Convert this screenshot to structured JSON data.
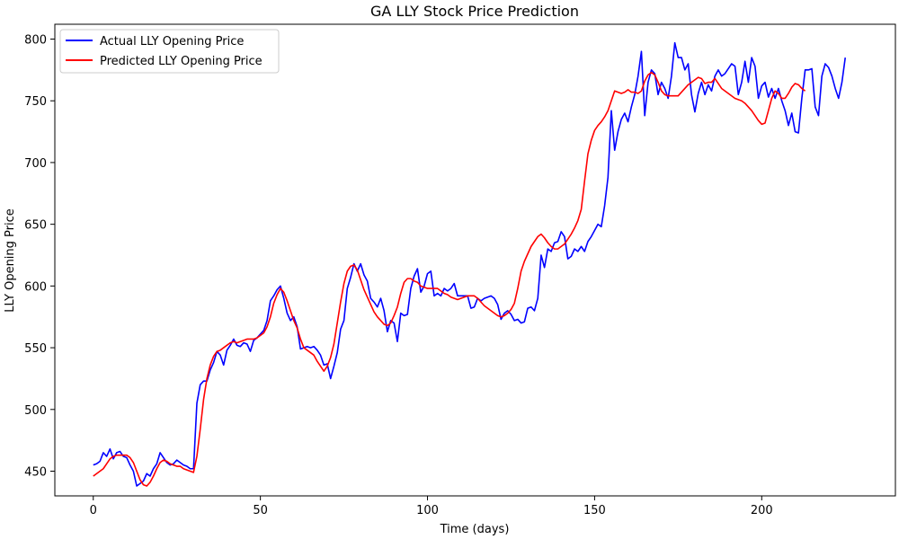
{
  "chart_data": {
    "type": "line",
    "title": "GA LLY Stock Price Prediction",
    "xlabel": "Time (days)",
    "ylabel": "LLY Opening Price",
    "xlim": [
      -11.5,
      240
    ],
    "ylim": [
      430,
      812
    ],
    "xticks": [
      0,
      50,
      100,
      150,
      200
    ],
    "yticks": [
      450,
      500,
      550,
      600,
      650,
      700,
      750,
      800
    ],
    "grid": false,
    "legend": "top-left",
    "series": [
      {
        "name": "Actual LLY Opening Price",
        "color": "#0000ff",
        "values": [
          455,
          456,
          458,
          465,
          462,
          468,
          460,
          465,
          466,
          462,
          461,
          455,
          450,
          438,
          440,
          442,
          448,
          446,
          452,
          456,
          465,
          461,
          457,
          455,
          456,
          459,
          457,
          455,
          454,
          452,
          452,
          505,
          520,
          523,
          523,
          532,
          538,
          547,
          544,
          536,
          548,
          552,
          557,
          552,
          551,
          554,
          553,
          547,
          556,
          558,
          561,
          564,
          572,
          588,
          592,
          597,
          600,
          590,
          578,
          572,
          575,
          567,
          549,
          550,
          551,
          550,
          551,
          548,
          544,
          536,
          537,
          525,
          535,
          546,
          565,
          572,
          598,
          607,
          618,
          612,
          618,
          609,
          604,
          590,
          587,
          583,
          590,
          580,
          563,
          572,
          570,
          555,
          578,
          576,
          577,
          598,
          608,
          614,
          595,
          600,
          610,
          612,
          592,
          594,
          592,
          598,
          596,
          598,
          602,
          592,
          592,
          592,
          592,
          582,
          583,
          590,
          588,
          590,
          591,
          592,
          590,
          585,
          573,
          578,
          580,
          577,
          572,
          573,
          570,
          571,
          582,
          583,
          580,
          590,
          625,
          615,
          630,
          628,
          635,
          636,
          644,
          640,
          622,
          624,
          630,
          628,
          632,
          628,
          636,
          640,
          645,
          650,
          648,
          665,
          688,
          742,
          710,
          725,
          735,
          740,
          733,
          745,
          755,
          770,
          790,
          738,
          765,
          775,
          772,
          755,
          765,
          760,
          752,
          770,
          797,
          785,
          785,
          775,
          780,
          755,
          741,
          756,
          765,
          755,
          763,
          758,
          770,
          775,
          770,
          772,
          776,
          780,
          778,
          755,
          765,
          782,
          765,
          785,
          778,
          752,
          762,
          765,
          753,
          760,
          752,
          760,
          750,
          742,
          730,
          740,
          725,
          724,
          752,
          775,
          775,
          776,
          745,
          738,
          770,
          780,
          777,
          770,
          760,
          752,
          765,
          785
        ]
      },
      {
        "name": "Predicted LLY Opening Price",
        "color": "#ff0000",
        "values": [
          446,
          448,
          450,
          452,
          456,
          460,
          462,
          463,
          463,
          463,
          463,
          461,
          457,
          450,
          443,
          439,
          438,
          441,
          446,
          452,
          457,
          459,
          458,
          456,
          455,
          454,
          454,
          452,
          451,
          450,
          449,
          462,
          484,
          508,
          525,
          536,
          543,
          547,
          548,
          550,
          552,
          554,
          555,
          554,
          555,
          556,
          557,
          557,
          557,
          558,
          560,
          562,
          567,
          575,
          586,
          593,
          598,
          595,
          588,
          580,
          572,
          566,
          557,
          550,
          548,
          546,
          544,
          539,
          535,
          531,
          535,
          542,
          553,
          570,
          587,
          602,
          612,
          616,
          617,
          613,
          605,
          597,
          591,
          585,
          579,
          575,
          572,
          569,
          568,
          570,
          576,
          583,
          594,
          603,
          606,
          606,
          604,
          603,
          600,
          599,
          598,
          598,
          598,
          598,
          596,
          594,
          593,
          591,
          590,
          589,
          590,
          591,
          592,
          592,
          592,
          590,
          587,
          584,
          582,
          580,
          578,
          576,
          575,
          576,
          578,
          581,
          586,
          598,
          612,
          620,
          626,
          632,
          636,
          640,
          642,
          639,
          635,
          632,
          630,
          630,
          632,
          634,
          638,
          642,
          647,
          653,
          662,
          685,
          707,
          718,
          726,
          730,
          733,
          737,
          742,
          750,
          758,
          757,
          756,
          757,
          759,
          757,
          757,
          756,
          758,
          766,
          771,
          773,
          771,
          765,
          758,
          755,
          754,
          754,
          754,
          754,
          757,
          760,
          763,
          765,
          767,
          769,
          768,
          764,
          765,
          765,
          768,
          764,
          760,
          758,
          756,
          754,
          752,
          751,
          750,
          748,
          745,
          742,
          738,
          734,
          731,
          732,
          742,
          752,
          758,
          756,
          752,
          752,
          756,
          761,
          764,
          763,
          760,
          758
        ]
      }
    ]
  }
}
